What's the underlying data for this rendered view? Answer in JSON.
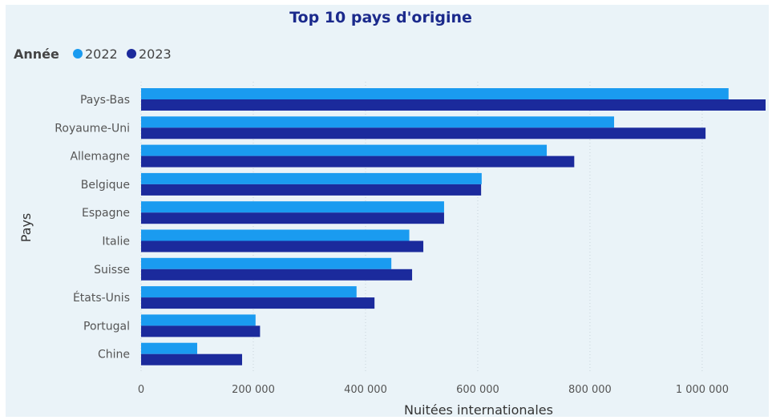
{
  "chart_data": {
    "type": "bar",
    "orientation": "horizontal",
    "title": "Top 10 pays d'origine",
    "legend_title": "Année",
    "legend_position": "top-left",
    "xlabel": "Nuitées internationales",
    "ylabel": "Pays",
    "categories": [
      "Pays-Bas",
      "Royaume-Uni",
      "Allemagne",
      "Belgique",
      "Espagne",
      "Italie",
      "Suisse",
      "États-Unis",
      "Portugal",
      "Chine"
    ],
    "series": [
      {
        "name": "2022",
        "color": "#1a9bf0",
        "values": [
          1047000,
          843000,
          723000,
          607000,
          540000,
          478000,
          446000,
          384000,
          204000,
          100000
        ]
      },
      {
        "name": "2023",
        "color": "#1b2a9c",
        "values": [
          1113000,
          1006000,
          772000,
          606000,
          540000,
          503000,
          483000,
          416000,
          212000,
          180000
        ]
      }
    ],
    "xlim": [
      0,
      1113000
    ],
    "xticks": [
      0,
      200000,
      400000,
      600000,
      800000,
      1000000
    ],
    "xtick_labels": [
      "0",
      "200 000",
      "400 000",
      "600 000",
      "800 000",
      "1 000 000"
    ],
    "grid": "vertical dotted"
  }
}
